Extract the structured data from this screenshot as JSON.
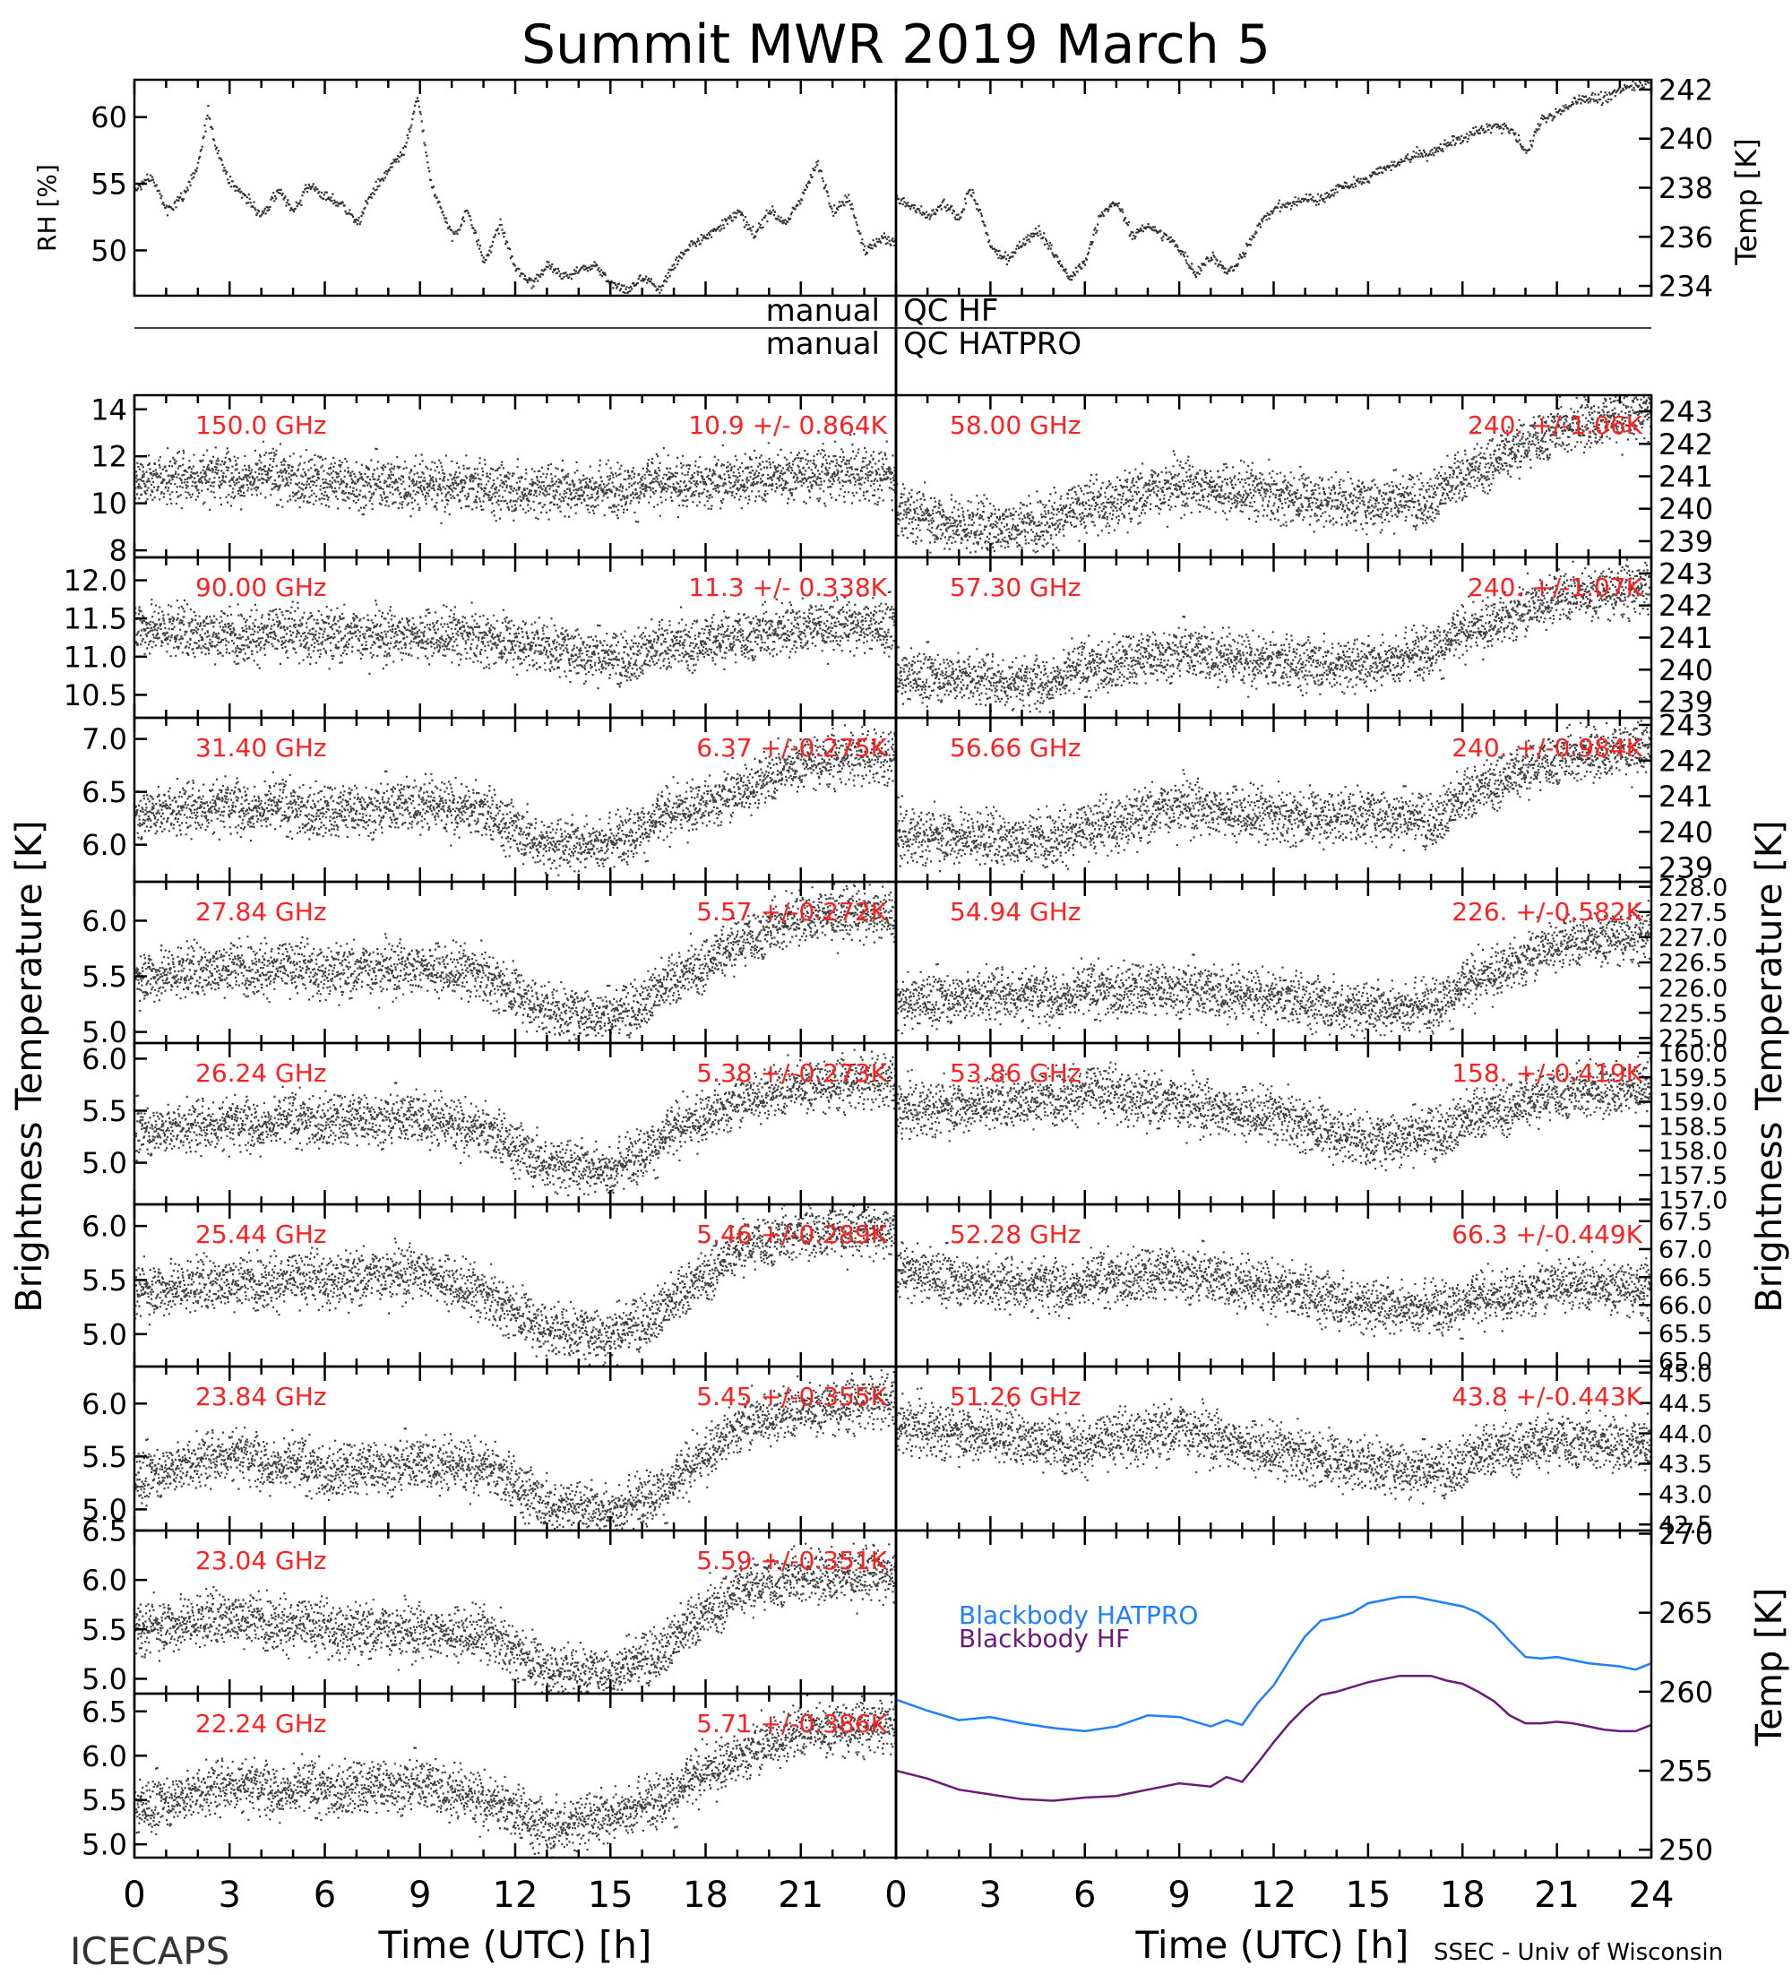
{
  "title": "Summit MWR 2019 March  5",
  "footer": {
    "left": "ICECAPS",
    "right": "SSEC - Univ of Wisconsin"
  },
  "labels": {
    "rh": "RH [%]",
    "temp_top": "Temp [K]",
    "bt_left": "Brightness Temperature [K]",
    "bt_right": "Brightness Temperature [K]",
    "temp_bottom": "Temp [K]",
    "xlabel": "Time (UTC) [h]",
    "qc_hf_left": "manual",
    "qc_hf_right": "QC HF",
    "qc_hatpro_left": "manual",
    "qc_hatpro_right": "QC HATPRO"
  },
  "colors": {
    "trace": "#000000",
    "annotation": "#ff2020",
    "hatpro": "#1e7fff",
    "hf": "#6a1a7a"
  },
  "chart_data": [
    {
      "id": "rh",
      "type": "scatter",
      "ylabel": "RH [%]",
      "xlim": [
        0,
        24
      ],
      "ylim": [
        46.6,
        62.8
      ],
      "yticks": [
        50,
        55,
        60
      ],
      "ytick_labels": [
        "50",
        "55",
        "60"
      ],
      "x": [
        0,
        0.5,
        1,
        1.5,
        2,
        2.3,
        2.5,
        3,
        3.5,
        4,
        4.5,
        5,
        5.5,
        6,
        6.5,
        7,
        7.5,
        8,
        8.5,
        8.9,
        9.3,
        10,
        10.5,
        11,
        11.5,
        12,
        12.5,
        13,
        13.5,
        14,
        14.5,
        15,
        15.5,
        16,
        16.5,
        17,
        17.5,
        18,
        18.5,
        19,
        19.5,
        20,
        20.5,
        21,
        21.5,
        22,
        22.5,
        23,
        23.5,
        24
      ],
      "y": [
        54.5,
        55.5,
        53,
        54,
        56.5,
        60.5,
        58,
        55,
        54,
        52.5,
        54.5,
        53,
        55,
        54,
        53.5,
        52,
        54.5,
        56,
        57.5,
        61.5,
        55,
        51,
        53,
        49,
        52,
        48.5,
        47.5,
        49,
        48,
        48.5,
        49,
        47.5,
        47,
        48,
        47,
        49,
        50.5,
        51,
        52,
        53,
        51,
        53,
        52,
        54,
        56.5,
        53,
        54,
        50,
        51,
        50.5
      ]
    },
    {
      "id": "temp",
      "type": "scatter",
      "ylabel": "Temp [K]",
      "xlim": [
        0,
        24
      ],
      "ylim": [
        233.6,
        242.4
      ],
      "yticks": [
        234,
        236,
        238,
        240,
        242
      ],
      "ytick_labels": [
        "234",
        "236",
        "238",
        "240",
        "242"
      ],
      "x": [
        0,
        0.5,
        1,
        1.5,
        2,
        2.3,
        2.7,
        3,
        3.5,
        4,
        4.5,
        5,
        5.5,
        6,
        6.5,
        7,
        7.5,
        8,
        8.5,
        9,
        9.5,
        10,
        10.5,
        11,
        11.5,
        12,
        12.5,
        13,
        13.5,
        14,
        14.5,
        15,
        15.5,
        16,
        16.5,
        17,
        17.5,
        18,
        18.5,
        19,
        19.5,
        20,
        20.5,
        21,
        21.5,
        22,
        22.5,
        23,
        23.5,
        24
      ],
      "y": [
        237.5,
        237.2,
        236.8,
        237.3,
        236.7,
        238,
        236.8,
        235.5,
        235,
        235.8,
        236.3,
        235.3,
        234.3,
        235,
        237,
        237.4,
        236,
        236.5,
        236,
        235.5,
        234.5,
        235.3,
        234.5,
        235.2,
        236.5,
        237.2,
        237.3,
        237.6,
        237.5,
        238,
        238.2,
        238.4,
        238.8,
        239,
        239.4,
        239.4,
        239.8,
        240,
        240.3,
        240.5,
        240.4,
        239.4,
        240.8,
        241,
        241.5,
        241.7,
        241.6,
        242,
        242.2,
        242.4
      ]
    },
    {
      "id": "hf150",
      "type": "scatter",
      "freq": "150.0 GHz",
      "stats": "10.9 +/- 0.864K",
      "ylim": [
        7.7,
        14.6
      ],
      "yticks": [
        8,
        10,
        12,
        14
      ],
      "ytick_labels": [
        "8",
        "10",
        "12",
        "14"
      ],
      "x": [
        0,
        3,
        6,
        9,
        12,
        15,
        18,
        21,
        24
      ],
      "y": [
        11,
        11.3,
        10.9,
        10.8,
        10.6,
        10.7,
        10.9,
        11.3,
        11.2
      ]
    },
    {
      "id": "hf90",
      "type": "scatter",
      "freq": "90.00 GHz",
      "stats": "11.3 +/- 0.338K",
      "ylim": [
        10.2,
        12.3
      ],
      "yticks": [
        10.5,
        11.0,
        11.5,
        12.0
      ],
      "ytick_labels": [
        "10.5",
        "11.0",
        "11.5",
        "12.0"
      ],
      "x": [
        0,
        3,
        6,
        9,
        12,
        15,
        18,
        21,
        24
      ],
      "y": [
        11.4,
        11.3,
        11.3,
        11.3,
        11.2,
        11.0,
        11.2,
        11.4,
        11.4
      ]
    },
    {
      "id": "h31",
      "type": "scatter",
      "freq": "31.40 GHz",
      "stats": "6.37 +/-0.275K",
      "ylim": [
        5.65,
        7.2
      ],
      "yticks": [
        6.0,
        6.5,
        7.0
      ],
      "ytick_labels": [
        "6.0",
        "6.5",
        "7.0"
      ],
      "x": [
        0,
        3,
        6,
        9,
        11,
        13,
        15,
        17,
        19,
        21,
        24
      ],
      "y": [
        6.3,
        6.4,
        6.3,
        6.4,
        6.3,
        6.0,
        6.05,
        6.3,
        6.5,
        6.8,
        6.85
      ]
    },
    {
      "id": "h27",
      "type": "scatter",
      "freq": "27.84 GHz",
      "stats": "5.57 +/-0.272K",
      "ylim": [
        4.9,
        6.35
      ],
      "yticks": [
        5.0,
        5.5,
        6.0
      ],
      "ytick_labels": [
        "5.0",
        "5.5",
        "6.0"
      ],
      "x": [
        0,
        3,
        6,
        9,
        11,
        13,
        15,
        17,
        19,
        21,
        24
      ],
      "y": [
        5.5,
        5.6,
        5.55,
        5.6,
        5.5,
        5.2,
        5.15,
        5.45,
        5.8,
        6.05,
        6.05
      ]
    },
    {
      "id": "h26",
      "type": "scatter",
      "freq": "26.24 GHz",
      "stats": "5.38 +/-0.273K",
      "ylim": [
        4.6,
        6.15
      ],
      "yticks": [
        5.0,
        5.5,
        6.0
      ],
      "ytick_labels": [
        "5.0",
        "5.5",
        "6.0"
      ],
      "x": [
        0,
        3,
        6,
        9,
        11,
        13,
        15,
        17,
        19,
        21,
        24
      ],
      "y": [
        5.3,
        5.4,
        5.4,
        5.45,
        5.3,
        5.0,
        4.95,
        5.3,
        5.6,
        5.75,
        5.8
      ]
    },
    {
      "id": "h25",
      "type": "scatter",
      "freq": "25.44 GHz",
      "stats": "5.46 +/-0.289K",
      "ylim": [
        4.7,
        6.2
      ],
      "yticks": [
        5.0,
        5.5,
        6.0
      ],
      "ytick_labels": [
        "5.0",
        "5.5",
        "6.0"
      ],
      "x": [
        0,
        3,
        6,
        9,
        11,
        13,
        15,
        17,
        19,
        21,
        24
      ],
      "y": [
        5.4,
        5.5,
        5.5,
        5.6,
        5.35,
        5.05,
        5.0,
        5.3,
        5.8,
        5.95,
        5.95
      ]
    },
    {
      "id": "h23a",
      "type": "scatter",
      "freq": "23.84 GHz",
      "stats": "5.45 +/-0.355K",
      "ylim": [
        4.8,
        6.35
      ],
      "yticks": [
        5.0,
        5.5,
        6.0
      ],
      "ytick_labels": [
        "5.0",
        "5.5",
        "6.0"
      ],
      "x": [
        0,
        3,
        6,
        9,
        11,
        13,
        15,
        17,
        19,
        21,
        24
      ],
      "y": [
        5.3,
        5.55,
        5.35,
        5.45,
        5.4,
        5.05,
        5.0,
        5.25,
        5.8,
        5.95,
        6.05
      ]
    },
    {
      "id": "h23b",
      "type": "scatter",
      "freq": "23.04 GHz",
      "stats": "5.59 +/-0.351K",
      "ylim": [
        4.85,
        6.5
      ],
      "yticks": [
        5.0,
        5.5,
        6.0,
        6.5
      ],
      "ytick_labels": [
        "5.0",
        "5.5",
        "6.0",
        "6.5"
      ],
      "x": [
        0,
        3,
        6,
        9,
        11,
        13,
        15,
        17,
        19,
        21,
        24
      ],
      "y": [
        5.5,
        5.65,
        5.5,
        5.5,
        5.45,
        5.1,
        5.05,
        5.4,
        5.9,
        6.05,
        6.05
      ]
    },
    {
      "id": "h22",
      "type": "scatter",
      "freq": "22.24 GHz",
      "stats": "5.71 +/-0.386K",
      "ylim": [
        4.85,
        6.7
      ],
      "yticks": [
        5.0,
        5.5,
        6.0,
        6.5
      ],
      "ytick_labels": [
        "5.0",
        "5.5",
        "6.0",
        "6.5"
      ],
      "x": [
        0,
        3,
        6,
        9,
        11,
        13,
        15,
        17,
        19,
        21,
        24
      ],
      "y": [
        5.4,
        5.7,
        5.6,
        5.7,
        5.5,
        5.2,
        5.35,
        5.6,
        6.0,
        6.3,
        6.35
      ]
    },
    {
      "id": "h58",
      "type": "scatter",
      "freq": "58.00 GHz",
      "stats": "240. +/-1.06K",
      "ylim": [
        238.5,
        243.5
      ],
      "yticks": [
        239,
        240,
        241,
        242,
        243
      ],
      "ytick_labels": [
        "239",
        "240",
        "241",
        "242",
        "243"
      ],
      "x": [
        0,
        2,
        4,
        6,
        9,
        12,
        15,
        17,
        19,
        21,
        24
      ],
      "y": [
        240,
        239.5,
        239.5,
        240,
        240.8,
        240.4,
        240.2,
        240.4,
        241.5,
        242.5,
        243
      ]
    },
    {
      "id": "h57",
      "type": "scatter",
      "freq": "57.30 GHz",
      "stats": "240. +/-1.07K",
      "ylim": [
        238.5,
        243.5
      ],
      "yticks": [
        239,
        240,
        241,
        242,
        243
      ],
      "ytick_labels": [
        "239",
        "240",
        "241",
        "242",
        "243"
      ],
      "x": [
        0,
        2,
        4,
        6,
        9,
        12,
        15,
        17,
        19,
        21,
        24
      ],
      "y": [
        239.8,
        239.8,
        239.6,
        240,
        240.6,
        240.2,
        240.2,
        240.7,
        241.5,
        242.3,
        242.6
      ]
    },
    {
      "id": "h56",
      "type": "scatter",
      "freq": "56.66 GHz",
      "stats": "240. +/-0.984K",
      "ylim": [
        238.6,
        243.2
      ],
      "yticks": [
        239,
        240,
        241,
        242,
        243
      ],
      "ytick_labels": [
        "239",
        "240",
        "241",
        "242",
        "243"
      ],
      "x": [
        0,
        2,
        4,
        6,
        9,
        12,
        15,
        17,
        19,
        21,
        24
      ],
      "y": [
        239.9,
        239.9,
        239.8,
        240,
        240.8,
        240.4,
        240.5,
        240.4,
        241.4,
        242.1,
        242.4
      ]
    },
    {
      "id": "h54",
      "type": "scatter",
      "freq": "54.94 GHz",
      "stats": "226. +/-0.582K",
      "ylim": [
        224.9,
        228.1
      ],
      "yticks": [
        225.0,
        225.5,
        226.0,
        226.5,
        227.0,
        227.5,
        228.0
      ],
      "ytick_labels": [
        "225.0",
        "225.5",
        "226.0",
        "226.5",
        "227.0",
        "227.5",
        "228.0"
      ],
      "x": [
        0,
        3,
        6,
        9,
        12,
        15,
        17,
        19,
        21,
        24
      ],
      "y": [
        225.7,
        225.9,
        225.9,
        226.0,
        225.8,
        225.6,
        225.7,
        226.3,
        226.9,
        227.1
      ]
    },
    {
      "id": "h53",
      "type": "scatter",
      "freq": "53.86 GHz",
      "stats": "158. +/-0.419K",
      "ylim": [
        156.9,
        160.2
      ],
      "yticks": [
        157.0,
        157.5,
        158.0,
        158.5,
        159.0,
        159.5,
        160.0
      ],
      "ytick_labels": [
        "157.0",
        "157.5",
        "158.0",
        "158.5",
        "159.0",
        "159.5",
        "160.0"
      ],
      "x": [
        0,
        3,
        6,
        9,
        12,
        15,
        17,
        19,
        21,
        24
      ],
      "y": [
        158.8,
        159.0,
        159.2,
        159.0,
        158.7,
        158.2,
        158.4,
        158.8,
        159.2,
        159.3
      ]
    },
    {
      "id": "h52",
      "type": "scatter",
      "freq": "52.28 GHz",
      "stats": "66.3 +/-0.449K",
      "ylim": [
        64.9,
        67.8
      ],
      "yticks": [
        65.0,
        65.5,
        66.0,
        66.5,
        67.0,
        67.5
      ],
      "ytick_labels": [
        "65.0",
        "65.5",
        "66.0",
        "66.5",
        "67.0",
        "67.5"
      ],
      "x": [
        0,
        3,
        6,
        9,
        12,
        15,
        17,
        19,
        21,
        24
      ],
      "y": [
        66.6,
        66.4,
        66.4,
        66.6,
        66.3,
        66.0,
        66.0,
        66.1,
        66.4,
        66.3
      ]
    },
    {
      "id": "h51",
      "type": "scatter",
      "freq": "51.26 GHz",
      "stats": "43.8 +/-0.443K",
      "ylim": [
        42.4,
        45.1
      ],
      "yticks": [
        42.5,
        43.0,
        43.5,
        44.0,
        44.5,
        45.0
      ],
      "ytick_labels": [
        "42.5",
        "43.0",
        "43.5",
        "44.0",
        "44.5",
        "45.0"
      ],
      "x": [
        0,
        3,
        6,
        9,
        12,
        15,
        17,
        19,
        21,
        24
      ],
      "y": [
        44.1,
        44.0,
        43.8,
        44.1,
        43.7,
        43.5,
        43.4,
        43.7,
        43.9,
        43.8
      ]
    },
    {
      "id": "bb",
      "type": "line",
      "ylabel": "Temp [K]",
      "xlim": [
        0,
        24
      ],
      "ylim": [
        249.5,
        270.2
      ],
      "yticks": [
        250,
        255,
        260,
        265,
        270
      ],
      "ytick_labels": [
        "250",
        "255",
        "260",
        "265",
        "270"
      ],
      "series": [
        {
          "name": "Blackbody HATPRO",
          "x": [
            0,
            1,
            2,
            3,
            4,
            5,
            6,
            7,
            8,
            9,
            10,
            10.5,
            11,
            11.5,
            12,
            12.5,
            13,
            13.5,
            14,
            14.5,
            15,
            15.5,
            16,
            16.5,
            17,
            17.5,
            18,
            18.5,
            19,
            19.5,
            20,
            20.5,
            21,
            21.5,
            22,
            22.5,
            23,
            23.5,
            24
          ],
          "y": [
            259.5,
            258.8,
            258.2,
            258.4,
            258.0,
            257.7,
            257.5,
            257.8,
            258.5,
            258.4,
            257.8,
            258.2,
            257.9,
            259.3,
            260.4,
            262.0,
            263.5,
            264.5,
            264.7,
            265.0,
            265.6,
            265.8,
            266.0,
            266.0,
            265.8,
            265.6,
            265.4,
            265.0,
            264.3,
            263.2,
            262.2,
            262.1,
            262.2,
            262.0,
            261.8,
            261.7,
            261.6,
            261.4,
            261.8
          ]
        },
        {
          "name": "Blackbody HF",
          "x": [
            0,
            1,
            2,
            3,
            4,
            5,
            6,
            7,
            8,
            9,
            10,
            10.5,
            11,
            11.5,
            12,
            12.5,
            13,
            13.5,
            14,
            14.5,
            15,
            15.5,
            16,
            16.5,
            17,
            17.5,
            18,
            18.5,
            19,
            19.5,
            20,
            20.5,
            21,
            21.5,
            22,
            22.5,
            23,
            23.5,
            24
          ],
          "y": [
            255.0,
            254.5,
            253.8,
            253.5,
            253.2,
            253.1,
            253.3,
            253.4,
            253.8,
            254.2,
            254.0,
            254.6,
            254.3,
            255.5,
            256.8,
            258.0,
            259.0,
            259.8,
            260.0,
            260.3,
            260.6,
            260.8,
            261.0,
            261.0,
            261.0,
            260.7,
            260.5,
            260.0,
            259.4,
            258.5,
            258.0,
            258.0,
            258.1,
            258.0,
            257.8,
            257.6,
            257.5,
            257.5,
            257.9
          ]
        }
      ]
    }
  ],
  "xaxis": {
    "ticks": [
      0,
      3,
      6,
      9,
      12,
      15,
      18,
      21,
      24
    ],
    "left_tick_labels": [
      "0",
      "3",
      "6",
      "9",
      "12",
      "15",
      "18",
      "21"
    ],
    "right_tick_labels": [
      "0",
      "3",
      "6",
      "9",
      "12",
      "15",
      "18",
      "21",
      "24"
    ]
  }
}
